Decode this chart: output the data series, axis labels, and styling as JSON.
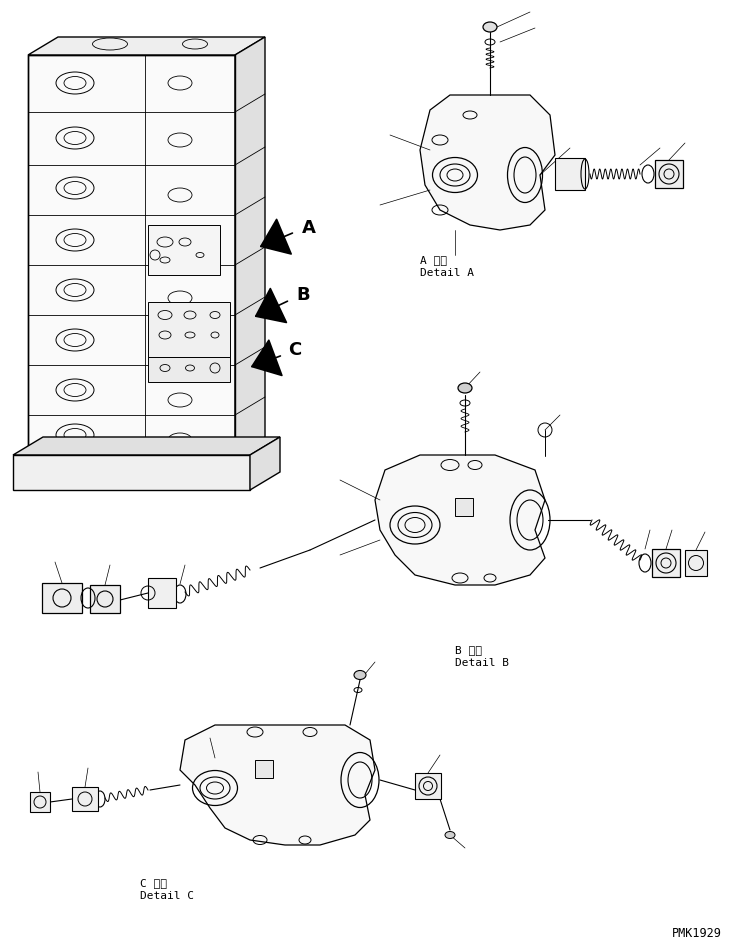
{
  "bg_color": "#ffffff",
  "line_color": "#000000",
  "fig_width": 7.29,
  "fig_height": 9.5,
  "dpi": 100,
  "label_A_japanese": "A 詳細",
  "label_A_english": "Detail A",
  "label_B_japanese": "B 詳細",
  "label_B_english": "Detail B",
  "label_C_japanese": "C 詳細",
  "label_C_english": "Detail C",
  "watermark": "PMK1929"
}
